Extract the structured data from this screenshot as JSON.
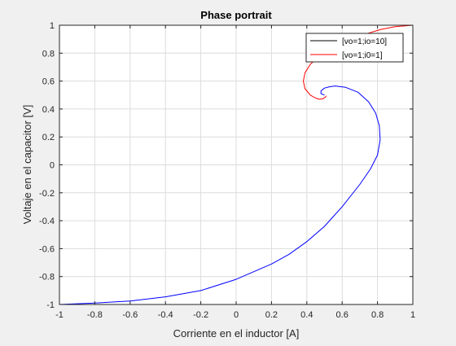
{
  "chart_data": {
    "type": "line",
    "title": "Phase portrait",
    "xlabel": "Corriente en el inductor [A]",
    "ylabel": "Voltaje en el capacitor [V]",
    "xlim": [
      -1,
      1
    ],
    "ylim": [
      -1,
      1
    ],
    "xticks": [
      -1,
      -0.8,
      -0.6,
      -0.4,
      -0.2,
      0,
      0.2,
      0.4,
      0.6,
      0.8,
      1
    ],
    "yticks": [
      -1,
      -0.8,
      -0.6,
      -0.4,
      -0.2,
      0,
      0.2,
      0.4,
      0.6,
      0.8,
      1
    ],
    "xtick_labels": [
      "-1",
      "-0.8",
      "-0.6",
      "-0.4",
      "-0.2",
      "0",
      "0.2",
      "0.4",
      "0.6",
      "0.8",
      "1"
    ],
    "ytick_labels": [
      "-1",
      "-0.8",
      "-0.6",
      "-0.4",
      "-0.2",
      "0",
      "0.2",
      "0.4",
      "0.6",
      "0.8",
      "1"
    ],
    "grid": true,
    "legend_position": "top-right",
    "legend": [
      {
        "label": "[vo=1;io=10]",
        "color": "#000000"
      },
      {
        "label": "[vo=1;i0=1]",
        "color": "#ff0000"
      }
    ],
    "series": [
      {
        "color": "#0000ff",
        "points": [
          [
            -1,
            -1
          ],
          [
            -0.8,
            -0.99
          ],
          [
            -0.6,
            -0.975
          ],
          [
            -0.4,
            -0.945
          ],
          [
            -0.2,
            -0.9
          ],
          [
            0,
            -0.82
          ],
          [
            0.2,
            -0.71
          ],
          [
            0.3,
            -0.64
          ],
          [
            0.4,
            -0.55
          ],
          [
            0.5,
            -0.44
          ],
          [
            0.6,
            -0.3
          ],
          [
            0.7,
            -0.14
          ],
          [
            0.76,
            -0.03
          ],
          [
            0.8,
            0.07
          ],
          [
            0.815,
            0.18
          ],
          [
            0.81,
            0.28
          ],
          [
            0.79,
            0.37
          ],
          [
            0.75,
            0.45
          ],
          [
            0.69,
            0.52
          ],
          [
            0.62,
            0.555
          ],
          [
            0.56,
            0.565
          ],
          [
            0.53,
            0.56
          ],
          [
            0.5,
            0.55
          ],
          [
            0.48,
            0.53
          ],
          [
            0.48,
            0.51
          ],
          [
            0.5,
            0.5
          ]
        ]
      },
      {
        "color": "#ff0000",
        "points": [
          [
            1,
            1
          ],
          [
            0.9,
            0.99
          ],
          [
            0.82,
            0.97
          ],
          [
            0.74,
            0.94
          ],
          [
            0.65,
            0.9
          ],
          [
            0.55,
            0.845
          ],
          [
            0.47,
            0.78
          ],
          [
            0.42,
            0.72
          ],
          [
            0.39,
            0.66
          ],
          [
            0.38,
            0.6
          ],
          [
            0.39,
            0.545
          ],
          [
            0.42,
            0.5
          ],
          [
            0.45,
            0.478
          ],
          [
            0.47,
            0.47
          ],
          [
            0.49,
            0.473
          ],
          [
            0.505,
            0.485
          ],
          [
            0.51,
            0.495
          ]
        ]
      }
    ]
  }
}
